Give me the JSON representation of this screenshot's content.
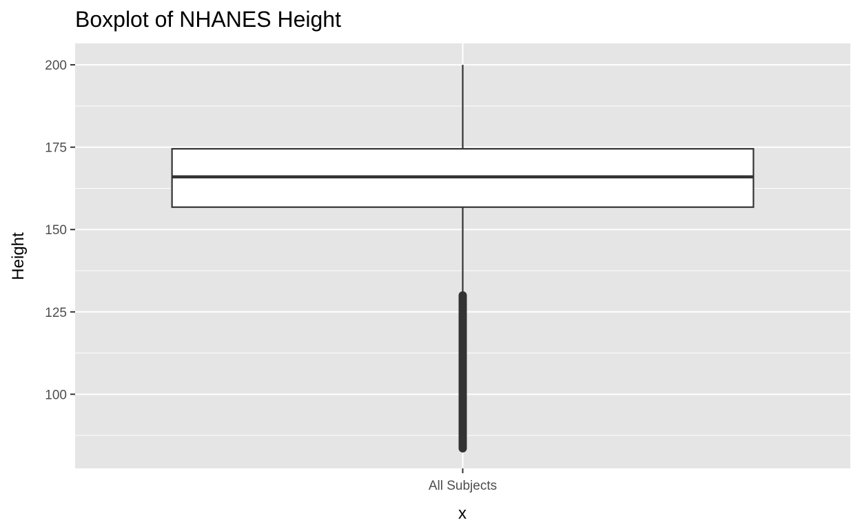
{
  "chart_data": {
    "type": "boxplot",
    "title": "Boxplot of NHANES Height",
    "xlabel": "x",
    "ylabel": "Height",
    "categories": [
      "All Subjects"
    ],
    "boxes": [
      {
        "category": "All Subjects",
        "whisker_low": 131.0,
        "q1": 156.8,
        "median": 166.0,
        "q3": 174.5,
        "whisker_high": 200.0,
        "outlier_range": [
          83.6,
          130.0
        ]
      }
    ],
    "ylim": [
      77.5,
      206.5
    ],
    "yticks": [
      100,
      125,
      150,
      175,
      200
    ],
    "grid": true,
    "colors": {
      "panel": "#e5e5e5",
      "grid_major": "#ffffff",
      "box_fill": "#ffffff",
      "box_line": "#333333",
      "outliers": "#333333",
      "tick_text": "#4d4d4d"
    }
  }
}
